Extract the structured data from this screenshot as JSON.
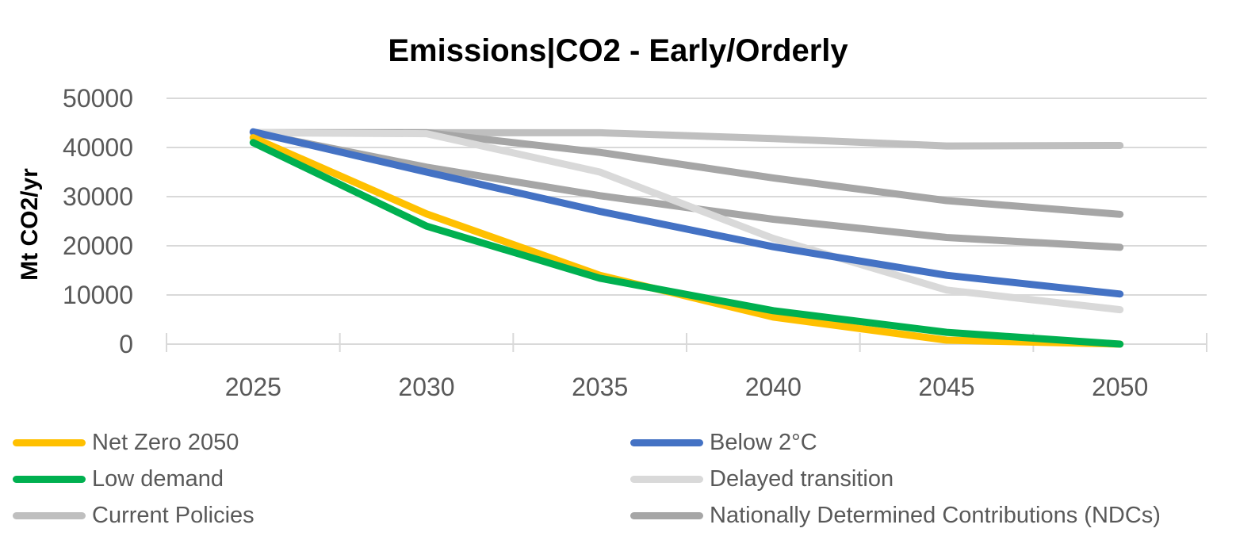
{
  "chart_data": {
    "type": "line",
    "title": "Emissions|CO2 - Early/Orderly",
    "xlabel": "",
    "ylabel": "Mt CO2/yr",
    "x": [
      "2025",
      "2030",
      "2035",
      "2040",
      "2045",
      "2050"
    ],
    "ylim": [
      0,
      50000
    ],
    "yticks": [
      "0",
      "10000",
      "20000",
      "30000",
      "40000",
      "50000"
    ],
    "grid": true,
    "legend_position": "bottom",
    "series": [
      {
        "name": "Net Zero 2050",
        "color": "#FFC000",
        "values": [
          42000,
          26500,
          14000,
          5500,
          800,
          0
        ]
      },
      {
        "name": "Below 2°C",
        "color": "#4472C4",
        "values": [
          43200,
          35000,
          27000,
          19800,
          14000,
          10200
        ]
      },
      {
        "name": "Low demand",
        "color": "#00B050",
        "values": [
          41000,
          24000,
          13400,
          6800,
          2400,
          0
        ]
      },
      {
        "name": "Delayed transition",
        "color": "#D9D9D9",
        "values": [
          43000,
          42800,
          35000,
          21500,
          11000,
          7000
        ]
      },
      {
        "name": "Current Policies",
        "color": "#BFBFBF",
        "values": [
          43000,
          43000,
          43000,
          41800,
          40300,
          40400
        ]
      },
      {
        "name": "Nationally Determined Contributions (NDCs)",
        "color": "#A6A6A6",
        "values": [
          43000,
          36000,
          30200,
          25400,
          21700,
          19700
        ]
      },
      {
        "name": "",
        "color": "#A6A6A6",
        "values": [
          43000,
          43000,
          39000,
          33800,
          29200,
          26400
        ]
      }
    ]
  }
}
